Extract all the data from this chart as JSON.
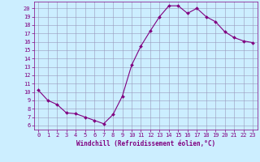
{
  "x": [
    0,
    1,
    2,
    3,
    4,
    5,
    6,
    7,
    8,
    9,
    10,
    11,
    12,
    13,
    14,
    15,
    16,
    17,
    18,
    19,
    20,
    21,
    22,
    23
  ],
  "y": [
    10.2,
    9.0,
    8.5,
    7.5,
    7.4,
    7.0,
    6.6,
    6.2,
    7.3,
    9.5,
    13.2,
    15.5,
    17.3,
    19.0,
    20.3,
    20.3,
    19.4,
    20.0,
    19.0,
    18.4,
    17.2,
    16.5,
    16.1,
    15.9
  ],
  "line_color": "#800080",
  "marker": "D",
  "marker_size": 2.0,
  "bg_color": "#cceeff",
  "grid_color": "#9999bb",
  "xlabel": "Windchill (Refroidissement éolien,°C)",
  "xlim": [
    -0.5,
    23.5
  ],
  "ylim": [
    5.5,
    20.8
  ],
  "yticks": [
    6,
    7,
    8,
    9,
    10,
    11,
    12,
    13,
    14,
    15,
    16,
    17,
    18,
    19,
    20
  ],
  "xticks": [
    0,
    1,
    2,
    3,
    4,
    5,
    6,
    7,
    8,
    9,
    10,
    11,
    12,
    13,
    14,
    15,
    16,
    17,
    18,
    19,
    20,
    21,
    22,
    23
  ],
  "tick_color": "#800080",
  "label_color": "#800080",
  "label_fontsize": 5.5,
  "tick_fontsize": 5.0
}
